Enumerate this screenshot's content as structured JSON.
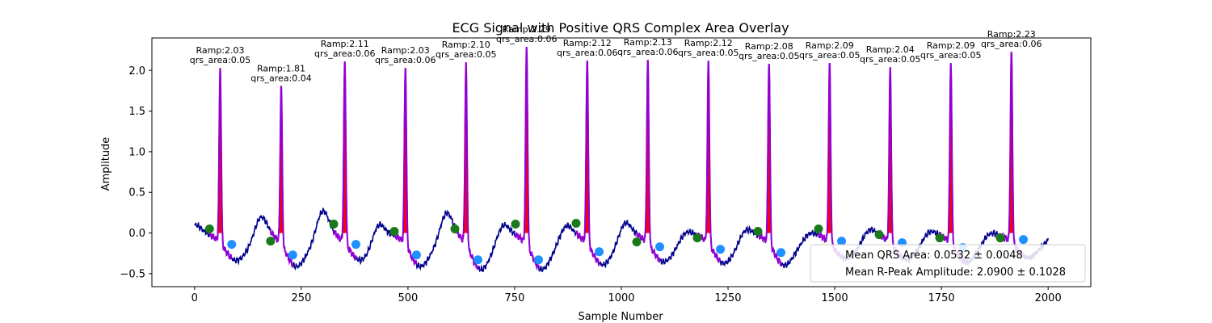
{
  "chart_data": {
    "type": "line",
    "title": "ECG Signal with Positive QRS Complex Area Overlay",
    "xlabel": "Sample Number",
    "ylabel": "Amplitude",
    "xlim": [
      -100,
      2100
    ],
    "ylim": [
      -0.66,
      2.4
    ],
    "x_ticks": [
      0,
      250,
      500,
      750,
      1000,
      1250,
      1500,
      1750,
      2000
    ],
    "y_ticks": [
      -0.5,
      0.0,
      0.5,
      1.0,
      1.5,
      2.0
    ],
    "x_tick_labels": [
      "0",
      "250",
      "500",
      "750",
      "1000",
      "1250",
      "1500",
      "1750",
      "2000"
    ],
    "y_tick_labels": [
      "−0.5",
      "0.0",
      "0.5",
      "1.0",
      "1.5",
      "2.0"
    ],
    "grid": false,
    "colors": {
      "ecg": "#00008b",
      "qrs_segment": "#9400d3",
      "qrs_area_fill": "#ff0000",
      "q_point": "#1a7a1a",
      "s_point": "#1e90ff"
    },
    "beats": [
      {
        "r_sample": 60,
        "r_amp": 2.03,
        "q_sample": 35,
        "q_amp": 0.05,
        "s_sample": 87,
        "s_amp": -0.14,
        "label_r": "Ramp:2.03",
        "label_area": "qrs_area:0.05"
      },
      {
        "r_sample": 203,
        "r_amp": 1.81,
        "q_sample": 178,
        "q_amp": -0.1,
        "s_sample": 230,
        "s_amp": -0.27,
        "label_r": "Ramp:1.81",
        "label_area": "qrs_area:0.04"
      },
      {
        "r_sample": 352,
        "r_amp": 2.11,
        "q_sample": 326,
        "q_amp": 0.11,
        "s_sample": 378,
        "s_amp": -0.14,
        "label_r": "Ramp:2.11",
        "label_area": "qrs_area:0.06"
      },
      {
        "r_sample": 494,
        "r_amp": 2.03,
        "q_sample": 468,
        "q_amp": 0.02,
        "s_sample": 520,
        "s_amp": -0.27,
        "label_r": "Ramp:2.03",
        "label_area": "qrs_area:0.06"
      },
      {
        "r_sample": 636,
        "r_amp": 2.1,
        "q_sample": 610,
        "q_amp": 0.05,
        "s_sample": 664,
        "s_amp": -0.33,
        "label_r": "Ramp:2.10",
        "label_area": "qrs_area:0.05"
      },
      {
        "r_sample": 778,
        "r_amp": 2.29,
        "q_sample": 752,
        "q_amp": 0.11,
        "s_sample": 806,
        "s_amp": -0.33,
        "label_r": "Ramp:2.29",
        "label_area": "qrs_area:0.06"
      },
      {
        "r_sample": 920,
        "r_amp": 2.12,
        "q_sample": 894,
        "q_amp": 0.12,
        "s_sample": 948,
        "s_amp": -0.23,
        "label_r": "Ramp:2.12",
        "label_area": "qrs_area:0.06"
      },
      {
        "r_sample": 1062,
        "r_amp": 2.13,
        "q_sample": 1036,
        "q_amp": -0.11,
        "s_sample": 1090,
        "s_amp": -0.17,
        "label_r": "Ramp:2.13",
        "label_area": "qrs_area:0.06"
      },
      {
        "r_sample": 1204,
        "r_amp": 2.12,
        "q_sample": 1178,
        "q_amp": -0.06,
        "s_sample": 1232,
        "s_amp": -0.2,
        "label_r": "Ramp:2.12",
        "label_area": "qrs_area:0.05"
      },
      {
        "r_sample": 1346,
        "r_amp": 2.08,
        "q_sample": 1320,
        "q_amp": 0.02,
        "s_sample": 1374,
        "s_amp": -0.24,
        "label_r": "Ramp:2.08",
        "label_area": "qrs_area:0.05"
      },
      {
        "r_sample": 1488,
        "r_amp": 2.09,
        "q_sample": 1462,
        "q_amp": 0.05,
        "s_sample": 1516,
        "s_amp": -0.1,
        "label_r": "Ramp:2.09",
        "label_area": "qrs_area:0.05"
      },
      {
        "r_sample": 1630,
        "r_amp": 2.04,
        "q_sample": 1604,
        "q_amp": -0.02,
        "s_sample": 1658,
        "s_amp": -0.12,
        "label_r": "Ramp:2.04",
        "label_area": "qrs_area:0.05"
      },
      {
        "r_sample": 1772,
        "r_amp": 2.09,
        "q_sample": 1746,
        "q_amp": -0.06,
        "s_sample": 1800,
        "s_amp": -0.18,
        "label_r": "Ramp:2.09",
        "label_area": "qrs_area:0.05"
      },
      {
        "r_sample": 1914,
        "r_amp": 2.23,
        "q_sample": 1888,
        "q_amp": -0.06,
        "s_sample": 1942,
        "s_amp": -0.08,
        "label_r": "Ramp:2.23",
        "label_area": "qrs_area:0.06"
      }
    ],
    "baseline_waves": [
      {
        "center": 2,
        "amp": 0.1
      },
      {
        "center": 155,
        "amp": 0.25
      },
      {
        "center": 300,
        "amp": 0.32
      },
      {
        "center": 430,
        "amp": 0.22
      },
      {
        "center": 590,
        "amp": 0.3
      },
      {
        "center": 722,
        "amp": 0.18
      },
      {
        "center": 870,
        "amp": 0.15
      },
      {
        "center": 1008,
        "amp": 0.2
      },
      {
        "center": 1150,
        "amp": 0.08
      },
      {
        "center": 1290,
        "amp": 0.12
      },
      {
        "center": 1440,
        "amp": 0.05
      },
      {
        "center": 1580,
        "amp": 0.1
      },
      {
        "center": 1720,
        "amp": 0.08
      },
      {
        "center": 1860,
        "amp": 0.06
      }
    ],
    "legend": {
      "placement": "lower right",
      "entries": [
        "Mean QRS Area: 0.0532 ± 0.0048",
        "Mean R-Peak Amplitude: 2.0900 ± 0.1028"
      ]
    }
  }
}
